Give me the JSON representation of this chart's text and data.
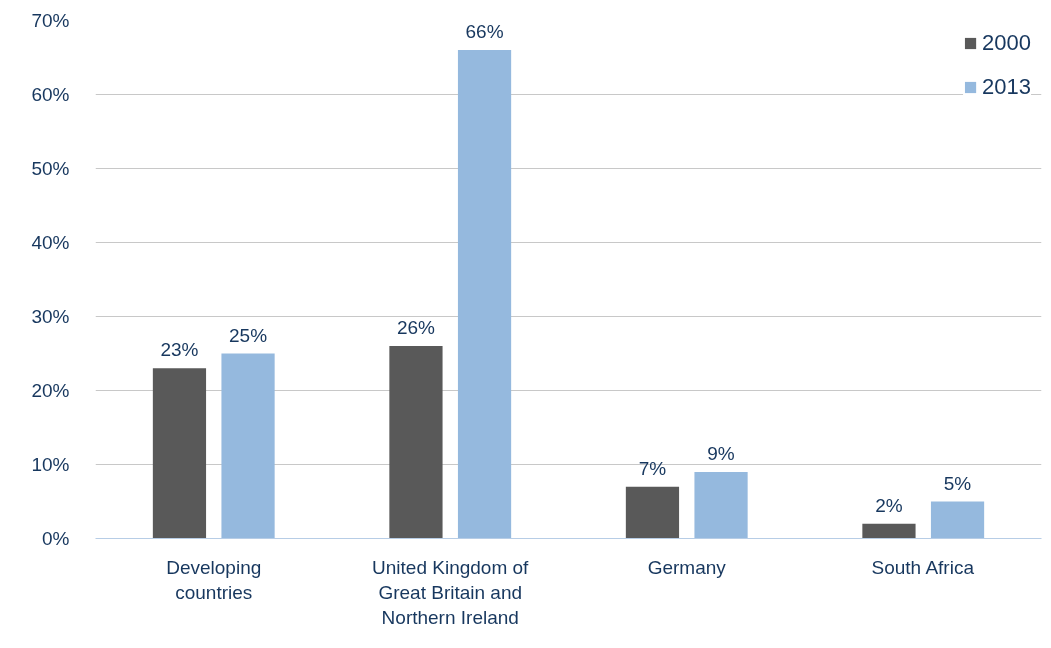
{
  "chart_data": {
    "type": "bar",
    "categories": [
      "Developing countries",
      "United Kingdom of Great Britain and Northern Ireland",
      "Germany",
      "South Africa"
    ],
    "series": [
      {
        "name": "2000",
        "color": "#595959",
        "values": [
          23,
          26,
          7,
          2
        ],
        "value_labels": [
          "23%",
          "26%",
          "7%",
          "2%"
        ]
      },
      {
        "name": "2013",
        "color": "#95b9de",
        "values": [
          25,
          66,
          9,
          5
        ],
        "value_labels": [
          "25%",
          "66%",
          "9%",
          "5%"
        ]
      }
    ],
    "ylim": [
      0,
      70
    ],
    "yticks": [
      {
        "value": 0,
        "label": "0%"
      },
      {
        "value": 10,
        "label": "10%"
      },
      {
        "value": 20,
        "label": "20%"
      },
      {
        "value": 30,
        "label": "30%"
      },
      {
        "value": 40,
        "label": "40%"
      },
      {
        "value": 50,
        "label": "50%"
      },
      {
        "value": 60,
        "label": "60%"
      },
      {
        "value": 70,
        "label": "70%"
      }
    ],
    "grid": "y",
    "legend": "top right"
  }
}
